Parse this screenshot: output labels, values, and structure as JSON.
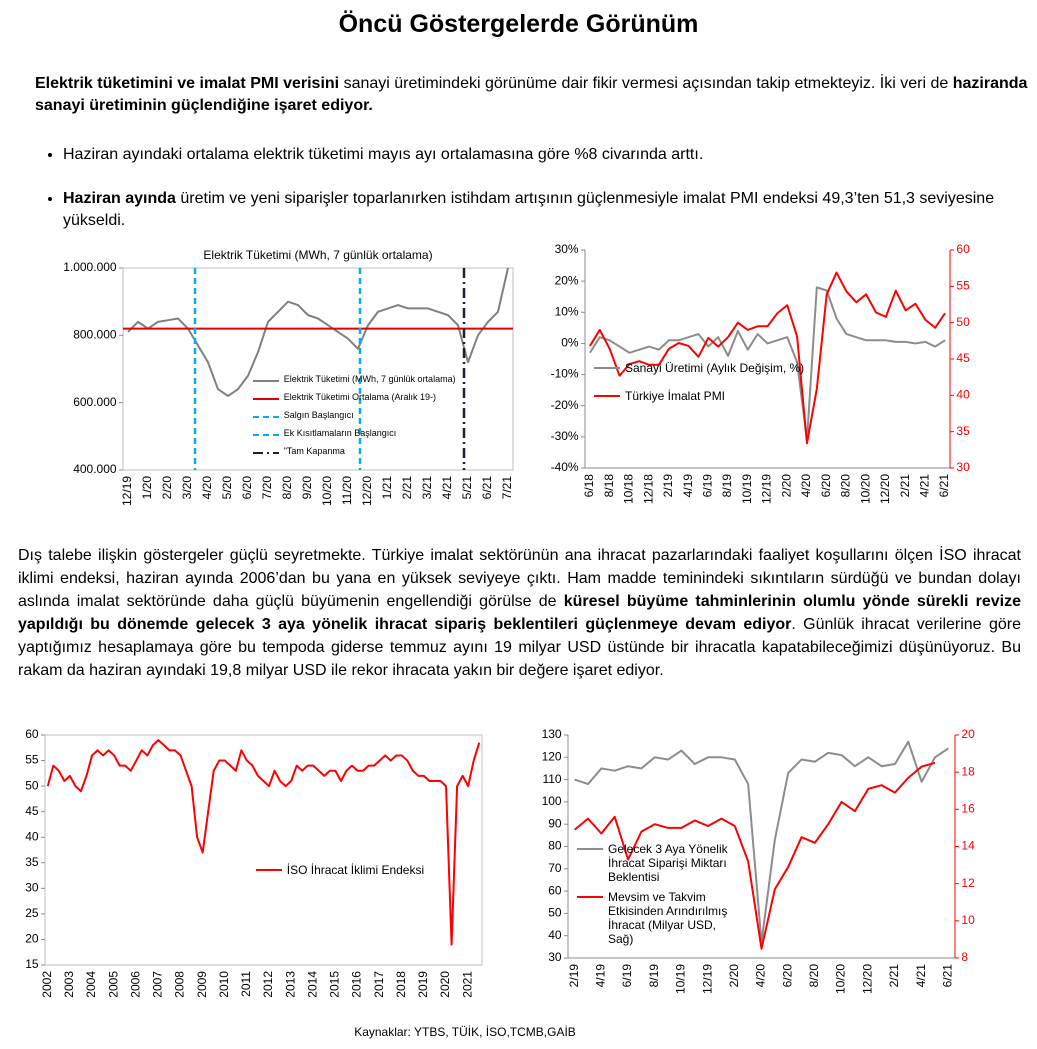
{
  "header": {
    "title": "Öncü Göstergelerde Görünüm"
  },
  "intro": {
    "runs": [
      {
        "text": "Elektrik tüketimini ve imalat PMI verisini",
        "bold": true
      },
      {
        "text": " sanayi üretimindeki görünüme dair fikir vermesi açısından takip etmekteyiz. İki veri de "
      },
      {
        "text": "haziranda sanayi üretiminin güçlendiğine işaret ediyor.",
        "bold": true
      }
    ]
  },
  "bullets": [
    {
      "runs": [
        {
          "text": "Haziran ayındaki ortalama elektrik tüketimi mayıs ayı ortalamasına göre %8 civarında arttı."
        }
      ]
    },
    {
      "runs": [
        {
          "text": "Haziran ayında",
          "bold": true
        },
        {
          "text": " üretim ve yeni siparişler toparlanırken istihdam artışının güçlenmesiyle imalat PMI endeksi 49,3’ten 51,3 seviyesine yükseldi."
        }
      ]
    }
  ],
  "body": {
    "runs": [
      {
        "text": "Dış talebe ilişkin göstergeler güçlü seyretmekte. Türkiye imalat sektörünün ana ihracat pazarlarındaki faaliyet koşullarını ölçen İSO ihracat iklimi endeksi, haziran ayında 2006’dan bu yana en yüksek seviyeye çıktı. Ham madde temininde­ki sıkıntıların sürdüğü ve bundan dolayı aslında imalat sektöründe daha güçlü büyümenin engellendiği görülse de "
      },
      {
        "text": "küresel büyüme tahminlerinin olumlu yönde sürekli revize yapıldığı bu dönemde gelecek 3 aya yönelik ihracat sipariş beklentileri güçlenmeye devam ediyor",
        "bold": true
      },
      {
        "text": ". Günlük ihracat verilerine göre yaptığımız hesaplamaya göre bu tempoda giderse temmuz ayını 19 milyar USD üstünde bir ihracatla kapatabileceğimizi düşünüyoruz. Bu rakam da haziran ayındaki 19,8 milyar USD ile rekor ihracata yakın bir değere işaret ediyor."
      }
    ]
  },
  "footer": {
    "source": "Kaynaklar: YTBS, TÜİK, İSO,TCMB,GAİB"
  },
  "chart_data": [
    {
      "type": "line",
      "title": "Elektrik Tüketimi  (MWh, 7 günlük  ortalama)",
      "categories": [
        "12/19",
        null,
        "1/20",
        null,
        "2/20",
        null,
        "3/20",
        null,
        "4/20",
        null,
        "5/20",
        null,
        "6/20",
        null,
        "7/20",
        null,
        "8/20",
        null,
        "9/20",
        null,
        "10/20",
        null,
        "11/20",
        null,
        "12/20",
        null,
        "1/21",
        null,
        "2/21",
        null,
        "3/21",
        null,
        "4/21",
        null,
        "5/21",
        null,
        "6/21",
        null,
        "7/21"
      ],
      "series": [
        {
          "name": "Elektrik Tüketimi (MWh, 7 günlük ortalama)",
          "color": "#808080",
          "values": [
            810000,
            840000,
            820000,
            840000,
            845000,
            850000,
            820000,
            770000,
            720000,
            640000,
            620000,
            640000,
            680000,
            750000,
            840000,
            870000,
            900000,
            890000,
            860000,
            850000,
            830000,
            810000,
            790000,
            760000,
            830000,
            870000,
            880000,
            890000,
            880000,
            880000,
            880000,
            870000,
            860000,
            830000,
            720000,
            800000,
            840000,
            870000,
            1000000
          ]
        }
      ],
      "hline": {
        "name": "Elektrik Tüketimi Ortalama (Aralık 19-)",
        "value": 820000,
        "color": "#e00000"
      },
      "vlines": [
        {
          "name": "Salgın Başlangıcı",
          "at": 6.7,
          "color": "#00b0f0",
          "dash": "dashed"
        },
        {
          "name": "Ek Kısıtlamaların Başlangıcı",
          "at": 23.2,
          "color": "#00b0f0",
          "dash": "dashed"
        },
        {
          "name": "\"Tam Kapanma",
          "at": 33.6,
          "color": "#1f1f2f",
          "dash": "dashdot"
        }
      ],
      "ylim": [
        400000,
        1000000
      ],
      "yticks": [
        {
          "value": 400000,
          "label": "400.000"
        },
        {
          "value": 600000,
          "label": "600.000"
        },
        {
          "value": 800000,
          "label": "800.000"
        },
        {
          "value": 1000000,
          "label": "1.000.000"
        }
      ],
      "legend": "lower center"
    },
    {
      "type": "line",
      "categories": [
        "6/18",
        null,
        "8/18",
        null,
        "10/18",
        null,
        "12/18",
        null,
        "2/19",
        null,
        "4/19",
        null,
        "6/19",
        null,
        "8/19",
        null,
        "10/19",
        null,
        "12/19",
        null,
        "2/20",
        null,
        "4/20",
        null,
        "6/20",
        null,
        "8/20",
        null,
        "10/20",
        null,
        "12/20",
        null,
        "2/21",
        null,
        "4/21",
        null,
        "6/21"
      ],
      "series": [
        {
          "name": "Sanayi Üretimi (Aylık Değişim, %)",
          "color": "#8c8c8c",
          "values": [
            -3,
            2,
            1,
            -1,
            -3,
            -2,
            -1,
            -2,
            1,
            1,
            2,
            3,
            -1,
            2,
            -4,
            4,
            -2,
            3,
            0,
            1,
            2,
            -6,
            -31,
            18,
            17,
            8,
            3,
            2,
            1,
            1,
            1,
            0.5,
            0.5,
            0,
            0.5,
            -1,
            1
          ]
        },
        {
          "name": "Türkiye İmalat PMI",
          "color": "#ff0000",
          "axis": "y2",
          "values": [
            46.8,
            49,
            46.4,
            42.7,
            44.3,
            44.7,
            44.2,
            44.2,
            46.4,
            47.2,
            46.8,
            45.3,
            47.9,
            46.7,
            48,
            50,
            49,
            49.5,
            49.5,
            51.3,
            52.4,
            48.1,
            33.4,
            40.9,
            53.9,
            56.9,
            54.3,
            52.8,
            53.9,
            51.4,
            50.8,
            54.4,
            51.7,
            52.6,
            50.4,
            49.3,
            51.3
          ]
        }
      ],
      "ylim": [
        -40,
        30
      ],
      "yticks": [
        {
          "value": -40,
          "label": "-40%"
        },
        {
          "value": -30,
          "label": "-30%"
        },
        {
          "value": -20,
          "label": "-20%"
        },
        {
          "value": -10,
          "label": "-10%"
        },
        {
          "value": 0,
          "label": "0%"
        },
        {
          "value": 10,
          "label": "10%"
        },
        {
          "value": 20,
          "label": "20%"
        },
        {
          "value": 30,
          "label": "30%"
        }
      ],
      "y2lim": [
        30,
        60
      ],
      "y2ticks": [
        30,
        35,
        40,
        45,
        50,
        55,
        60
      ],
      "y2color": "#ff0000",
      "legend": "center left"
    },
    {
      "type": "line",
      "categories": [
        "2002",
        null,
        null,
        null,
        "2003",
        null,
        null,
        null,
        "2004",
        null,
        null,
        null,
        "2005",
        null,
        null,
        null,
        "2006",
        null,
        null,
        null,
        "2007",
        null,
        null,
        null,
        "2008",
        null,
        null,
        null,
        "2009",
        null,
        null,
        null,
        "2010",
        null,
        null,
        null,
        "2011",
        null,
        null,
        null,
        "2012",
        null,
        null,
        null,
        "2013",
        null,
        null,
        null,
        "2014",
        null,
        null,
        null,
        "2015",
        null,
        null,
        null,
        "2016",
        null,
        null,
        null,
        "2017",
        null,
        null,
        null,
        "2018",
        null,
        null,
        null,
        "2019",
        null,
        null,
        null,
        "2020",
        null,
        null,
        null,
        "2021",
        null,
        null
      ],
      "series": [
        {
          "name": "İSO İhracat İklimi Endeksi",
          "color": "#ff0000",
          "values": [
            50,
            54,
            53,
            51,
            52,
            50,
            49,
            52,
            56,
            57,
            56,
            57,
            56,
            54,
            54,
            53,
            55,
            57,
            56,
            58,
            59,
            58,
            57,
            57,
            56,
            53,
            50,
            40,
            37,
            45,
            53,
            55,
            55,
            54,
            53,
            57,
            55,
            54,
            52,
            51,
            50,
            53,
            51,
            50,
            51,
            54,
            53,
            54,
            54,
            53,
            52,
            53,
            53,
            51,
            53,
            54,
            53,
            53,
            54,
            54,
            55,
            56,
            55,
            56,
            56,
            55,
            53,
            52,
            52,
            51,
            51,
            51,
            50,
            19,
            50,
            52,
            50,
            55,
            58.5
          ]
        }
      ],
      "ylim": [
        15,
        60
      ],
      "yticks": [
        15,
        20,
        25,
        30,
        35,
        40,
        45,
        50,
        55,
        60
      ],
      "legend": "center right"
    },
    {
      "type": "line",
      "categories": [
        "2/19",
        null,
        "4/19",
        null,
        "6/19",
        null,
        "8/19",
        null,
        "10/19",
        null,
        "12/19",
        null,
        "2/20",
        null,
        "4/20",
        null,
        "6/20",
        null,
        "8/20",
        null,
        "10/20",
        null,
        "12/20",
        null,
        "2/21",
        null,
        "4/21",
        null,
        "6/21"
      ],
      "series": [
        {
          "name": "Gelecek 3 Aya Yönelik İhracat Siparişi Miktarı Beklentisi",
          "color": "#8c8c8c",
          "values": [
            110,
            108,
            115,
            114,
            116,
            115,
            120,
            119,
            123,
            117,
            120,
            120,
            119,
            108,
            37,
            83,
            113,
            119,
            118,
            122,
            121,
            116,
            120,
            116,
            117,
            127,
            109,
            120,
            124
          ]
        },
        {
          "name": "Mevsim ve Takvim Etkisinden Arındırılmış İhracat (Milyar USD, Sağ)",
          "color": "#ff0000",
          "axis": "y2",
          "values": [
            14.9,
            15.5,
            14.7,
            15.6,
            13.3,
            14.8,
            15.2,
            15.0,
            15.0,
            15.4,
            15.1,
            15.5,
            15.1,
            13.2,
            8.5,
            11.7,
            12.9,
            14.5,
            14.2,
            15.2,
            16.4,
            15.9,
            17.1,
            17.3,
            16.9,
            17.7,
            18.3,
            18.5,
            null
          ]
        }
      ],
      "ylim": [
        30,
        130
      ],
      "yticks": [
        30,
        40,
        50,
        60,
        70,
        80,
        90,
        100,
        110,
        120,
        130
      ],
      "y2lim": [
        8,
        20
      ],
      "y2ticks": [
        8,
        10,
        12,
        14,
        16,
        18,
        20
      ],
      "y2color": "#ff0000",
      "legend": "lower left"
    }
  ]
}
